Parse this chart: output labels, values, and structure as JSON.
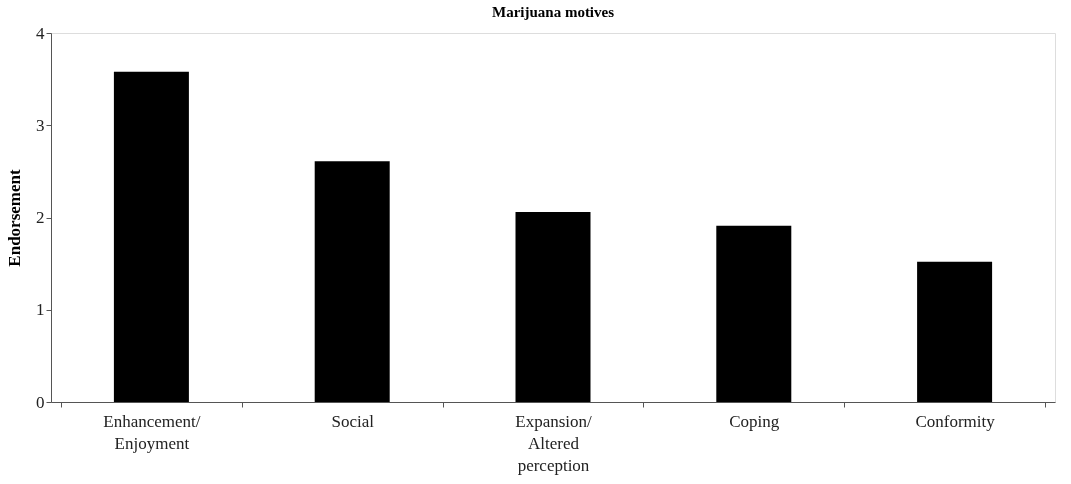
{
  "chart_data": {
    "type": "bar",
    "title": "Marijuana motives",
    "ylabel": "Endorsement",
    "categories": [
      "Enhancement/ Enjoyment",
      "Social",
      "Expansion/ Altered perception",
      "Coping",
      "Conformity"
    ],
    "values": [
      3.58,
      2.61,
      2.06,
      1.91,
      1.52
    ],
    "color": "#000000",
    "ylim": [
      0,
      4
    ],
    "yticks": [
      0,
      1,
      2,
      3,
      4
    ],
    "grid": false
  }
}
